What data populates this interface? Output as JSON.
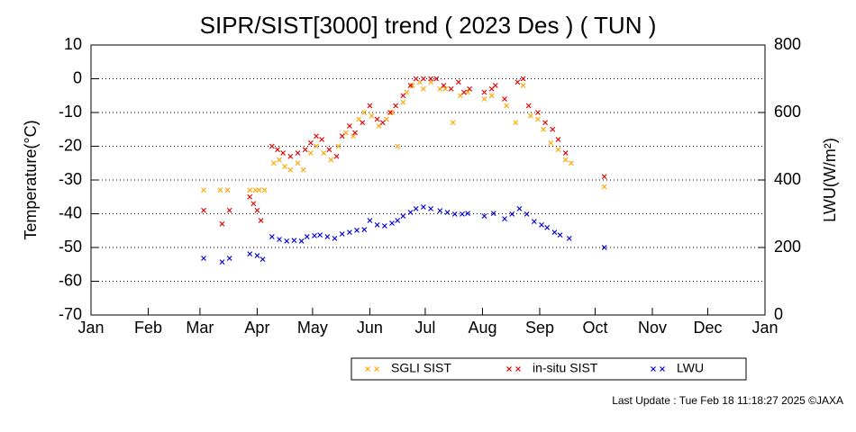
{
  "chart_data": {
    "type": "scatter",
    "title": "SIPR/SIST[3000] trend ( 2023 Des ) ( TUN )",
    "y_label": "Temperature(°C)",
    "y2_label": "LWU(W/m²)",
    "footer": "Last Update : Tue Feb 18 11:18:27 2025  ©JAXA",
    "xlim": [
      0,
      365
    ],
    "xticks": [
      {
        "value": 0,
        "label": "Jan"
      },
      {
        "value": 31,
        "label": "Feb"
      },
      {
        "value": 59,
        "label": "Mar"
      },
      {
        "value": 90,
        "label": "Apr"
      },
      {
        "value": 120,
        "label": "May"
      },
      {
        "value": 151,
        "label": "Jun"
      },
      {
        "value": 181,
        "label": "Jul"
      },
      {
        "value": 212,
        "label": "Aug"
      },
      {
        "value": 243,
        "label": "Sep"
      },
      {
        "value": 273,
        "label": "Oct"
      },
      {
        "value": 304,
        "label": "Nov"
      },
      {
        "value": 334,
        "label": "Dec"
      },
      {
        "value": 365,
        "label": "Jan"
      }
    ],
    "ylim": [
      -70,
      10
    ],
    "yticks": [
      -70,
      -60,
      -50,
      -40,
      -30,
      -20,
      -10,
      0,
      10
    ],
    "y2lim": [
      0,
      800
    ],
    "y2ticks": [
      0,
      200,
      400,
      600,
      800
    ],
    "grid": true,
    "series": [
      {
        "name": "SGLI SIST",
        "color": "#ffa500",
        "x": [
          61,
          70,
          74,
          86,
          89,
          91,
          94,
          99,
          102,
          105,
          108,
          112,
          115,
          119,
          122,
          126,
          130,
          134,
          138,
          142,
          145,
          148,
          152,
          156,
          160,
          163,
          166,
          169,
          171,
          174,
          178,
          180,
          184,
          189,
          192,
          196,
          200,
          204,
          213,
          217,
          225,
          230,
          234,
          238,
          242,
          245,
          249,
          253,
          257,
          260,
          278
        ],
        "values": [
          -33,
          -33,
          -33,
          -33,
          -33,
          -33,
          -33,
          -25,
          -24,
          -26,
          -27,
          -25,
          -27,
          -22,
          -20,
          -22,
          -24,
          -20,
          -16,
          -17,
          -12,
          -10,
          -11,
          -14,
          -12,
          -10,
          -20,
          -7,
          -4,
          -2,
          -1,
          -3,
          -1,
          -3,
          -3,
          -13,
          -5,
          -4,
          -6,
          -5,
          -8,
          -13,
          -2,
          -11,
          -12,
          -15,
          -19,
          -21,
          -24,
          -25,
          -32
        ]
      },
      {
        "name": "in-situ SIST",
        "color": "#e00000",
        "x": [
          61,
          71,
          75,
          86,
          88,
          90,
          92,
          98,
          101,
          104,
          108,
          112,
          116,
          119,
          122,
          125,
          129,
          133,
          136,
          140,
          143,
          147,
          151,
          155,
          158,
          162,
          165,
          169,
          173,
          176,
          180,
          184,
          187,
          191,
          195,
          199,
          202,
          205,
          213,
          217,
          219,
          224,
          231,
          234,
          237,
          242,
          246,
          250,
          253,
          257,
          278
        ],
        "values": [
          -39,
          -43,
          -39,
          -35,
          -37,
          -39,
          -42,
          -20,
          -21,
          -22,
          -23,
          -22,
          -21,
          -19,
          -17,
          -18,
          -21,
          -23,
          -17,
          -14,
          -16,
          -13,
          -8,
          -12,
          -13,
          -10,
          -8,
          -5,
          -2,
          0,
          0,
          0,
          0,
          -2,
          -3,
          -1,
          -4,
          -3,
          -4,
          -3,
          -2,
          -6,
          -1,
          0,
          -8,
          -10,
          -13,
          -15,
          -18,
          -22,
          -29
        ]
      },
      {
        "name": "LWU",
        "color": "#0000e0",
        "axis": "y2",
        "x": [
          61,
          71,
          75,
          86,
          90,
          93,
          98,
          102,
          106,
          110,
          114,
          117,
          121,
          124,
          128,
          132,
          136,
          140,
          144,
          148,
          151,
          155,
          159,
          163,
          166,
          169,
          173,
          176,
          180,
          184,
          189,
          193,
          197,
          201,
          204,
          213,
          218,
          224,
          228,
          232,
          236,
          240,
          244,
          247,
          251,
          254,
          259,
          278
        ],
        "values": [
          168,
          157,
          168,
          181,
          176,
          165,
          232,
          224,
          219,
          221,
          219,
          232,
          235,
          237,
          232,
          227,
          240,
          245,
          251,
          253,
          280,
          267,
          264,
          272,
          280,
          293,
          304,
          315,
          320,
          315,
          309,
          304,
          299,
          299,
          301,
          293,
          301,
          285,
          299,
          315,
          299,
          277,
          267,
          259,
          245,
          237,
          227,
          200
        ]
      }
    ]
  }
}
